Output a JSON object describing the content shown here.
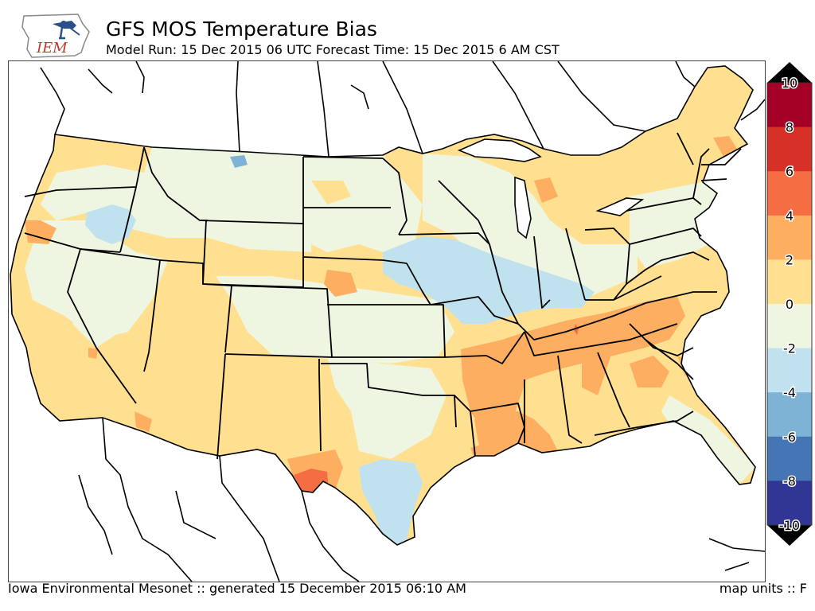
{
  "header": {
    "logo_text": "IEM",
    "title": "GFS MOS Temperature Bias",
    "subtitle": "Model Run: 15 Dec 2015 06 UTC Forecast Time: 15 Dec 2015 6 AM CST"
  },
  "colorbar": {
    "labels": [
      "10",
      "8",
      "6",
      "4",
      "2",
      "0",
      "-2",
      "-4",
      "-6",
      "-8",
      "-10"
    ],
    "bins": [
      {
        "range": [
          8,
          10
        ],
        "color": "#a50026"
      },
      {
        "range": [
          6,
          8
        ],
        "color": "#d73027"
      },
      {
        "range": [
          4,
          6
        ],
        "color": "#f46d43"
      },
      {
        "range": [
          2,
          4
        ],
        "color": "#fdae61"
      },
      {
        "range": [
          0,
          2
        ],
        "color": "#fee090"
      },
      {
        "range": [
          -2,
          0
        ],
        "color": "#eef6e2"
      },
      {
        "range": [
          -4,
          -2
        ],
        "color": "#c0e2ef"
      },
      {
        "range": [
          -6,
          -4
        ],
        "color": "#7fb3d5"
      },
      {
        "range": [
          -8,
          -6
        ],
        "color": "#4575b4"
      },
      {
        "range": [
          -10,
          -8
        ],
        "color": "#313695"
      }
    ],
    "extend_high_color": "#000000",
    "extend_low_color": "#000000"
  },
  "footer": {
    "left": "Iowa Environmental Mesonet :: generated 15 December 2015 06:10 AM",
    "right": "map units :: F"
  }
}
